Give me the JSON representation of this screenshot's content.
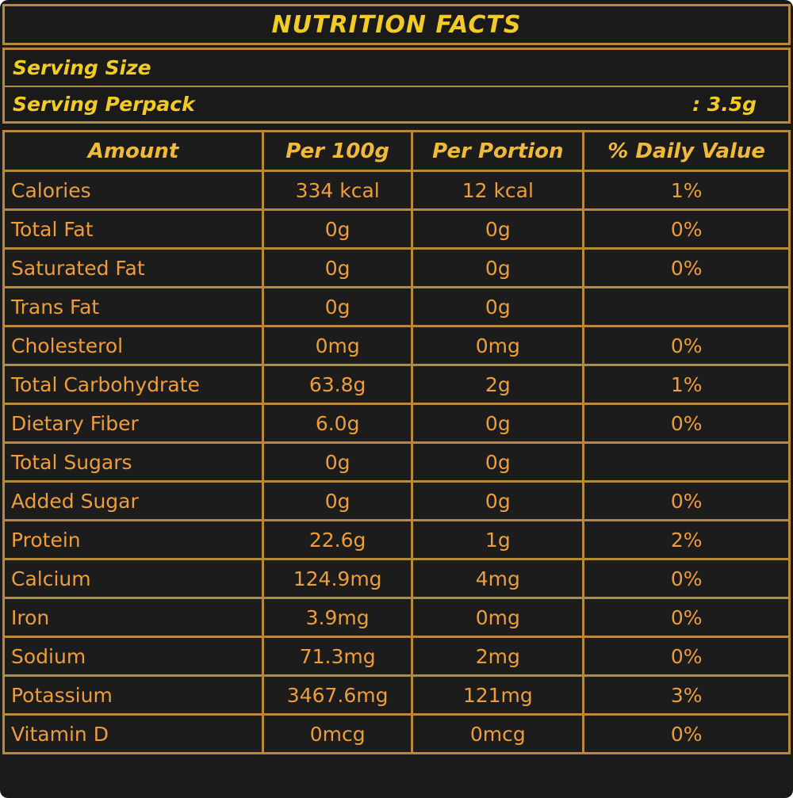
{
  "title": "NUTRITION FACTS",
  "serving": {
    "size_label": "Serving Size",
    "size_value": "",
    "perpack_label": "Serving Perpack",
    "perpack_value": ": 3.5g"
  },
  "table": {
    "headers": [
      "Amount",
      "Per 100g",
      "Per Portion",
      "% Daily Value"
    ],
    "rows": [
      {
        "label": "Calories",
        "per100g": "334 kcal",
        "portion": "12 kcal",
        "daily": "1%"
      },
      {
        "label": "Total Fat",
        "per100g": "0g",
        "portion": "0g",
        "daily": "0%"
      },
      {
        "label": "Saturated Fat",
        "per100g": "0g",
        "portion": "0g",
        "daily": "0%"
      },
      {
        "label": "Trans Fat",
        "per100g": "0g",
        "portion": "0g",
        "daily": ""
      },
      {
        "label": "Cholesterol",
        "per100g": "0mg",
        "portion": "0mg",
        "daily": "0%"
      },
      {
        "label": "Total Carbohydrate",
        "per100g": "63.8g",
        "portion": "2g",
        "daily": "1%"
      },
      {
        "label": "Dietary Fiber",
        "per100g": "6.0g",
        "portion": "0g",
        "daily": "0%"
      },
      {
        "label": "Total Sugars",
        "per100g": "0g",
        "portion": "0g",
        "daily": ""
      },
      {
        "label": "Added Sugar",
        "per100g": "0g",
        "portion": "0g",
        "daily": "0%"
      },
      {
        "label": "Protein",
        "per100g": "22.6g",
        "portion": "1g",
        "daily": "2%"
      },
      {
        "label": "Calcium",
        "per100g": "124.9mg",
        "portion": "4mg",
        "daily": "0%"
      },
      {
        "label": "Iron",
        "per100g": "3.9mg",
        "portion": "0mg",
        "daily": "0%"
      },
      {
        "label": "Sodium",
        "per100g": "71.3mg",
        "portion": "2mg",
        "daily": "0%"
      },
      {
        "label": "Potassium",
        "per100g": "3467.6mg",
        "portion": "121mg",
        "daily": "3%"
      },
      {
        "label": "Vitamin D",
        "per100g": "0mcg",
        "portion": "0mcg",
        "daily": "0%"
      }
    ]
  },
  "colors": {
    "background": "#1a1a1a",
    "border": "#b6893c",
    "title_text": "#f2cb27",
    "header_text": "#f0b93a",
    "row_text": "#ee9d3c"
  }
}
